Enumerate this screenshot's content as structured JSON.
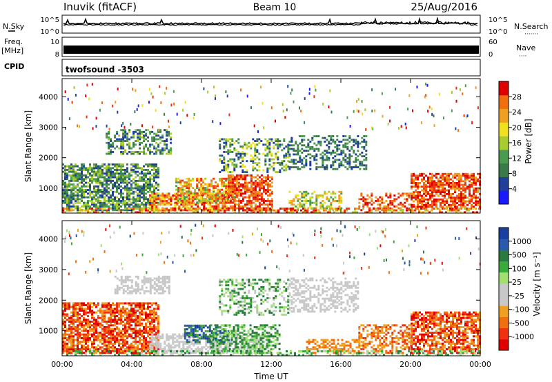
{
  "header": {
    "station": "Inuvik (fitACF)",
    "beam": "Beam 10",
    "date": "25/Aug/2016"
  },
  "strips": {
    "nsky_label": "N.Sky",
    "nsky_ticks": [
      "10^5",
      "10^0"
    ],
    "nsearch_label": "N.Search",
    "nsearch_dots": "·······",
    "freq_label_1": "Freq.",
    "freq_label_2": "[MHz]",
    "freq_ticks": [
      "10",
      "8"
    ],
    "nave_label": "Nave",
    "nave_dots": "····",
    "nave_ticks": [
      "60",
      "0"
    ],
    "cpid_label": "CPID",
    "cpid_value": "twofsound -3503"
  },
  "colors": {
    "power_scale": [
      "#1a1aff",
      "#1f3f9a",
      "#3a7a4a",
      "#4a9a50",
      "#a8cc30",
      "#f0e020",
      "#f0a020",
      "#f07010",
      "#f03010",
      "#e00000"
    ],
    "velocity_scale": [
      "#1a3fa0",
      "#2a5aaa",
      "#2a7a40",
      "#3aaa3a",
      "#a0e070",
      "#c8c8c8",
      "#c8c8c8",
      "#f0a020",
      "#f07010",
      "#f03010",
      "#e00000"
    ]
  },
  "chart_data": [
    {
      "type": "heatmap",
      "ylabel": "Slant Range [km]",
      "xlabel": "",
      "x_ticks": [
        "00:00",
        "04:00",
        "08:00",
        "12:00",
        "16:00",
        "20:00",
        "00:00"
      ],
      "x_range_hours": [
        0,
        24
      ],
      "y_ticks": [
        1000,
        2000,
        3000,
        4000
      ],
      "ylim": [
        180,
        4600
      ],
      "colorbar": {
        "label": "Power [dB]",
        "ticks": [
          4,
          8,
          12,
          16,
          20,
          24,
          28
        ],
        "range": [
          0,
          32
        ]
      }
    },
    {
      "type": "heatmap",
      "ylabel": "Slant Range [km]",
      "xlabel": "Time UT",
      "x_ticks": [
        "00:00",
        "04:00",
        "08:00",
        "12:00",
        "16:00",
        "20:00",
        "00:00"
      ],
      "x_range_hours": [
        0,
        24
      ],
      "y_ticks": [
        1000,
        2000,
        3000,
        4000
      ],
      "ylim": [
        180,
        4600
      ],
      "colorbar": {
        "label": "Velocity [m s⁻¹]",
        "ticks": [
          "1000",
          "500",
          "100",
          "25",
          "-25",
          "-100",
          "-500",
          "-1000"
        ]
      }
    }
  ]
}
